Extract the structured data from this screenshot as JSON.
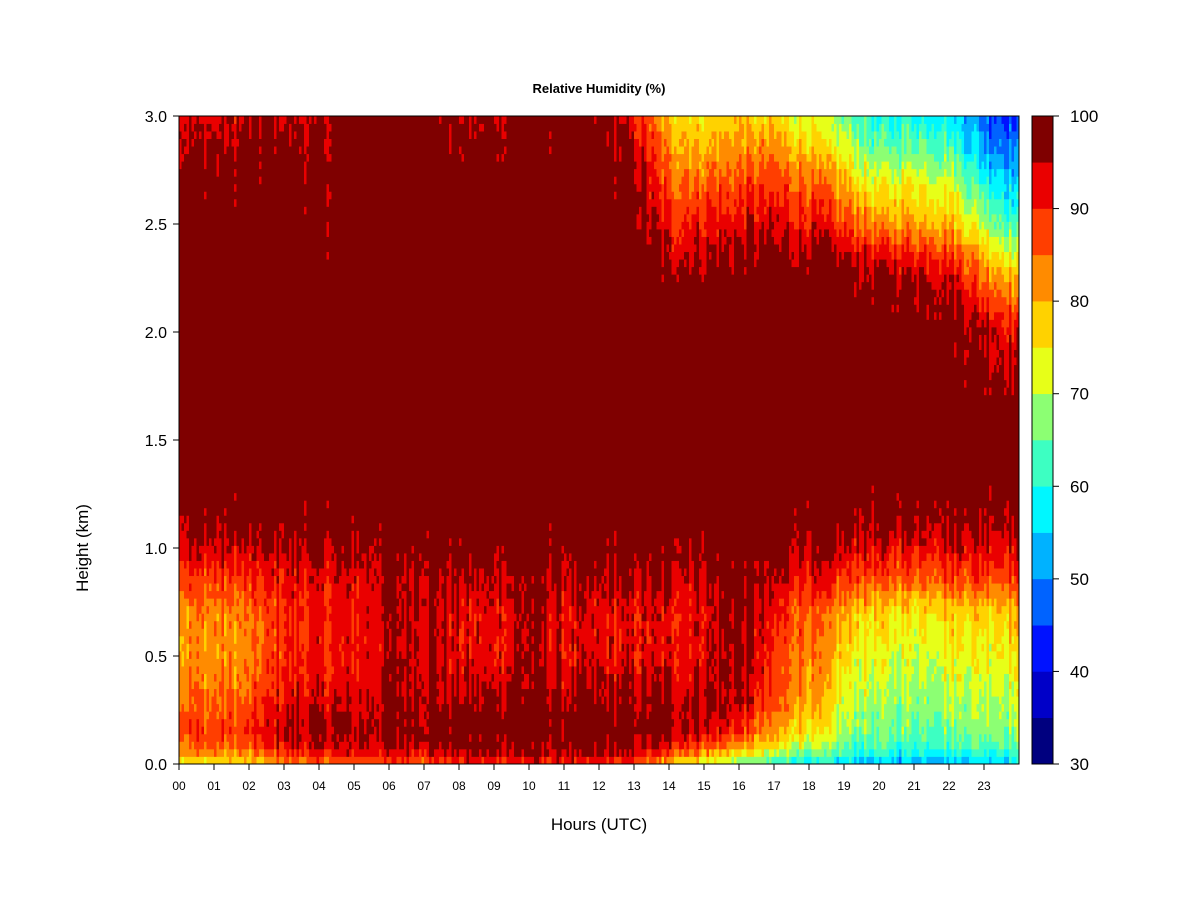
{
  "chart_data": {
    "type": "heatmap",
    "title": "Relative Humidity (%)",
    "xlabel": "Hours (UTC)",
    "ylabel": "Height (km)",
    "x_range_hours": [
      0,
      24
    ],
    "ylim": [
      0,
      3.0
    ],
    "x_tick_labels": [
      "00",
      "01",
      "02",
      "03",
      "04",
      "05",
      "06",
      "07",
      "08",
      "09",
      "10",
      "11",
      "12",
      "13",
      "14",
      "15",
      "16",
      "17",
      "18",
      "19",
      "20",
      "21",
      "22",
      "23"
    ],
    "y_ticks": [
      0.0,
      0.5,
      1.0,
      1.5,
      2.0,
      2.5,
      3.0
    ],
    "y_tick_labels": [
      "0.0",
      "0.5",
      "1.0",
      "1.5",
      "2.0",
      "2.5",
      "3.0"
    ],
    "colorbar": {
      "range": [
        30,
        100
      ],
      "step": 5,
      "tick_values": [
        30,
        40,
        50,
        60,
        70,
        80,
        90,
        100
      ],
      "tick_labels": [
        "30",
        "40",
        "50",
        "60",
        "70",
        "80",
        "90",
        "100"
      ],
      "colors": [
        "#00007f",
        "#0000c8",
        "#0012ff",
        "#0063ff",
        "#00b2ff",
        "#00f7ff",
        "#3dffc2",
        "#8cff73",
        "#e7ff18",
        "#ffd200",
        "#ff8b00",
        "#ff3e00",
        "#ea0000",
        "#7f0000"
      ]
    },
    "profile_keys_height_km": [
      0.0,
      0.03,
      0.08,
      0.15,
      0.3,
      0.5,
      0.7,
      0.85,
      1.0,
      1.15,
      1.3,
      1.6,
      2.0,
      2.2,
      2.35,
      2.5,
      2.7,
      2.85,
      3.0
    ],
    "hourly_profiles_rh": [
      {
        "hour": 0,
        "rh": [
          74,
          80,
          86,
          88,
          85,
          82,
          83,
          88,
          94,
          98,
          100,
          100,
          100,
          100,
          100,
          100,
          99,
          96,
          94
        ]
      },
      {
        "hour": 1,
        "rh": [
          74,
          80,
          86,
          88,
          85,
          82,
          83,
          88,
          94,
          98,
          100,
          100,
          100,
          100,
          100,
          100,
          99,
          96,
          94
        ]
      },
      {
        "hour": 2,
        "rh": [
          74,
          79,
          86,
          88,
          85,
          82,
          83,
          88,
          94,
          98,
          100,
          100,
          100,
          100,
          100,
          99,
          98,
          96,
          94
        ]
      },
      {
        "hour": 3,
        "rh": [
          82,
          88,
          92,
          96,
          93,
          90,
          90,
          92,
          96,
          99,
          100,
          100,
          100,
          100,
          100,
          100,
          100,
          98,
          96
        ]
      },
      {
        "hour": 4,
        "rh": [
          82,
          89,
          93,
          96,
          93,
          90,
          90,
          92,
          96,
          99,
          100,
          100,
          100,
          100,
          99,
          98,
          98,
          96,
          94
        ]
      },
      {
        "hour": 5,
        "rh": [
          84,
          90,
          94,
          96,
          93,
          91,
          91,
          93,
          96,
          99,
          100,
          100,
          100,
          100,
          100,
          100,
          100,
          100,
          100
        ]
      },
      {
        "hour": 6,
        "rh": [
          85,
          91,
          95,
          97,
          96,
          95,
          95,
          96,
          98,
          100,
          100,
          100,
          100,
          100,
          100,
          100,
          100,
          100,
          100
        ]
      },
      {
        "hour": 7,
        "rh": [
          86,
          92,
          96,
          98,
          97,
          96,
          96,
          97,
          99,
          100,
          100,
          100,
          100,
          100,
          100,
          100,
          100,
          100,
          100
        ]
      },
      {
        "hour": 8,
        "rh": [
          87,
          93,
          97,
          99,
          96,
          92,
          92,
          95,
          98,
          100,
          100,
          100,
          100,
          100,
          100,
          100,
          100,
          98,
          96
        ]
      },
      {
        "hour": 9,
        "rh": [
          87,
          94,
          97,
          99,
          96,
          92,
          92,
          95,
          98,
          100,
          100,
          100,
          100,
          100,
          100,
          100,
          100,
          98,
          96
        ]
      },
      {
        "hour": 10,
        "rh": [
          88,
          94,
          97,
          99,
          97,
          96,
          96,
          97,
          99,
          100,
          100,
          100,
          100,
          100,
          100,
          100,
          100,
          100,
          100
        ]
      },
      {
        "hour": 11,
        "rh": [
          88,
          94,
          97,
          99,
          96,
          92,
          92,
          95,
          98,
          100,
          100,
          100,
          100,
          100,
          100,
          100,
          100,
          99,
          98
        ]
      },
      {
        "hour": 12,
        "rh": [
          87,
          93,
          97,
          99,
          96,
          92,
          92,
          95,
          98,
          100,
          100,
          100,
          100,
          100,
          100,
          100,
          100,
          99,
          98
        ]
      },
      {
        "hour": 13,
        "rh": [
          86,
          92,
          96,
          98,
          96,
          92,
          92,
          95,
          98,
          100,
          100,
          100,
          100,
          100,
          100,
          100,
          98,
          95,
          92
        ]
      },
      {
        "hour": 14,
        "rh": [
          78,
          84,
          92,
          97,
          96,
          92,
          92,
          95,
          98,
          100,
          100,
          100,
          100,
          100,
          94,
          90,
          85,
          82,
          78
        ]
      },
      {
        "hour": 15,
        "rh": [
          72,
          78,
          88,
          95,
          96,
          93,
          93,
          95,
          98,
          100,
          100,
          100,
          100,
          100,
          96,
          92,
          86,
          80,
          76
        ]
      },
      {
        "hour": 16,
        "rh": [
          66,
          72,
          82,
          90,
          96,
          97,
          98,
          99,
          100,
          100,
          100,
          100,
          100,
          100,
          97,
          93,
          87,
          82,
          78
        ]
      },
      {
        "hour": 17,
        "rh": [
          60,
          66,
          74,
          80,
          86,
          88,
          90,
          94,
          97,
          99,
          100,
          100,
          100,
          100,
          97,
          93,
          87,
          82,
          76
        ]
      },
      {
        "hour": 18,
        "rh": [
          58,
          63,
          70,
          76,
          82,
          84,
          86,
          92,
          96,
          99,
          100,
          100,
          100,
          100,
          97,
          92,
          85,
          78,
          72
        ]
      },
      {
        "hour": 19,
        "rh": [
          54,
          59,
          64,
          68,
          72,
          76,
          80,
          88,
          94,
          98,
          100,
          100,
          100,
          100,
          95,
          88,
          80,
          72,
          66
        ]
      },
      {
        "hour": 20,
        "rh": [
          52,
          56,
          62,
          65,
          68,
          72,
          76,
          86,
          93,
          98,
          100,
          100,
          100,
          98,
          92,
          82,
          72,
          64,
          58
        ]
      },
      {
        "hour": 21,
        "rh": [
          52,
          57,
          62,
          66,
          68,
          72,
          76,
          86,
          93,
          98,
          100,
          100,
          100,
          98,
          92,
          82,
          74,
          66,
          60
        ]
      },
      {
        "hour": 22,
        "rh": [
          54,
          58,
          63,
          66,
          70,
          74,
          78,
          88,
          94,
          98,
          100,
          100,
          100,
          97,
          90,
          80,
          72,
          64,
          58
        ]
      },
      {
        "hour": 23,
        "rh": [
          55,
          59,
          64,
          68,
          70,
          74,
          78,
          88,
          94,
          98,
          100,
          100,
          96,
          88,
          80,
          70,
          60,
          52,
          48
        ]
      },
      {
        "hour": 24,
        "rh": [
          55,
          59,
          64,
          68,
          72,
          76,
          80,
          88,
          94,
          98,
          100,
          100,
          92,
          82,
          72,
          62,
          54,
          48,
          44
        ]
      }
    ]
  }
}
